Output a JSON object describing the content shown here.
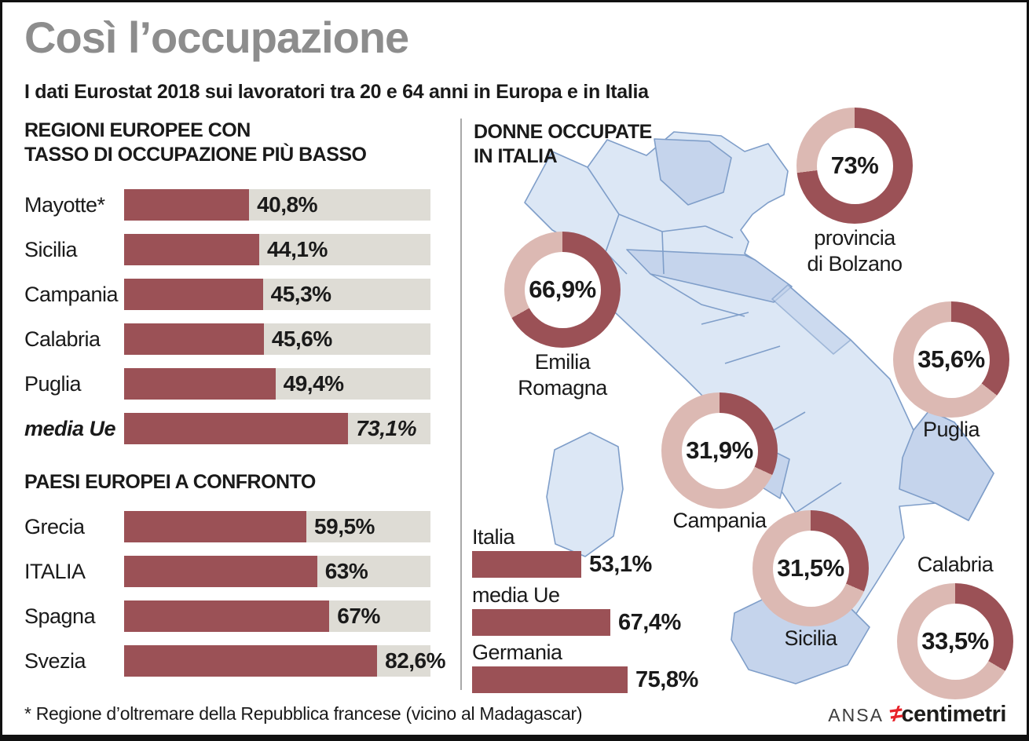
{
  "title": "Così l’occupazione",
  "subtitle": "I dati Eurostat 2018 sui lavoratori tra 20 e 64 anni in Europa e in Italia",
  "colors": {
    "bar_red": "#9b5156",
    "donut_dark": "#9b5156",
    "donut_pink": "#dcb9b3",
    "track_gray": "#dedcd5",
    "title_gray": "#8d8d8d",
    "map_fill": "#dce7f5",
    "map_dark": "#c5d4ec",
    "map_stroke": "#7f9ec9",
    "brand_red": "#e8232a"
  },
  "left": {
    "section1": {
      "title_lines": [
        "REGIONI EUROPEE CON",
        "TASSO DI OCCUPAZIONE PIÙ BASSO"
      ],
      "rows": [
        {
          "label": "Mayotte*",
          "value": 40.8,
          "value_label": "40,8%",
          "italic": false
        },
        {
          "label": "Sicilia",
          "value": 44.1,
          "value_label": "44,1%",
          "italic": false
        },
        {
          "label": "Campania",
          "value": 45.3,
          "value_label": "45,3%",
          "italic": false
        },
        {
          "label": "Calabria",
          "value": 45.6,
          "value_label": "45,6%",
          "italic": false
        },
        {
          "label": "Puglia",
          "value": 49.4,
          "value_label": "49,4%",
          "italic": false
        },
        {
          "label": "media Ue",
          "value": 73.1,
          "value_label": "73,1%",
          "italic": true
        }
      ]
    },
    "section2": {
      "title_lines": [
        "PAESI EUROPEI A CONFRONTO"
      ],
      "rows": [
        {
          "label": "Grecia",
          "value": 59.5,
          "value_label": "59,5%",
          "italic": false
        },
        {
          "label": "ITALIA",
          "value": 63,
          "value_label": "63%",
          "italic": false
        },
        {
          "label": "Spagna",
          "value": 67,
          "value_label": "67%",
          "italic": false
        },
        {
          "label": "Svezia",
          "value": 82.6,
          "value_label": "82,6%",
          "italic": false
        }
      ]
    }
  },
  "right": {
    "title_lines": [
      "DONNE OCCUPATE",
      "IN ITALIA"
    ],
    "donuts": [
      {
        "label_lines": [
          "provincia",
          "di Bolzano"
        ],
        "value": 73,
        "value_label": "73%"
      },
      {
        "label_lines": [
          "Emilia",
          "Romagna"
        ],
        "value": 66.9,
        "value_label": "66,9%"
      },
      {
        "label_lines": [
          "Puglia"
        ],
        "value": 35.6,
        "value_label": "35,6%"
      },
      {
        "label_lines": [
          "Campania"
        ],
        "value": 31.9,
        "value_label": "31,9%"
      },
      {
        "label_lines": [
          "Sicilia"
        ],
        "value": 31.5,
        "value_label": "31,5%"
      },
      {
        "label_lines": [
          "Calabria"
        ],
        "value": 33.5,
        "value_label": "33,5%"
      }
    ],
    "bars": [
      {
        "label": "Italia",
        "value": 53.1,
        "value_label": "53,1%"
      },
      {
        "label": "media Ue",
        "value": 67.4,
        "value_label": "67,4%"
      },
      {
        "label": "Germania",
        "value": 75.8,
        "value_label": "75,8%"
      }
    ]
  },
  "footer": {
    "note": "* Regione d’oltremare della Repubblica francese (vicino al Madagascar)",
    "brand": {
      "ansa": "ANSA",
      "symbol": "≠",
      "name": "centimetri"
    }
  },
  "chart_data": [
    {
      "type": "bar",
      "title": "REGIONI EUROPEE CON TASSO DI OCCUPAZIONE PIÙ BASSO",
      "categories": [
        "Mayotte*",
        "Sicilia",
        "Campania",
        "Calabria",
        "Puglia",
        "media Ue"
      ],
      "values": [
        40.8,
        44.1,
        45.3,
        45.6,
        49.4,
        73.1
      ],
      "unit": "%",
      "xlim": [
        0,
        100
      ],
      "orientation": "horizontal"
    },
    {
      "type": "bar",
      "title": "PAESI EUROPEI A CONFRONTO",
      "categories": [
        "Grecia",
        "ITALIA",
        "Spagna",
        "Svezia"
      ],
      "values": [
        59.5,
        63,
        67,
        82.6
      ],
      "unit": "%",
      "xlim": [
        0,
        100
      ],
      "orientation": "horizontal"
    },
    {
      "type": "pie",
      "subtype": "donut-multiples",
      "title": "DONNE OCCUPATE IN ITALIA",
      "categories": [
        "provincia di Bolzano",
        "Emilia Romagna",
        "Puglia",
        "Campania",
        "Sicilia",
        "Calabria"
      ],
      "values": [
        73,
        66.9,
        35.6,
        31.9,
        31.5,
        33.5
      ],
      "unit": "%"
    },
    {
      "type": "bar",
      "title": "DONNE OCCUPATE — confronto nazionale",
      "categories": [
        "Italia",
        "media Ue",
        "Germania"
      ],
      "values": [
        53.1,
        67.4,
        75.8
      ],
      "unit": "%",
      "xlim": [
        0,
        100
      ],
      "orientation": "horizontal"
    }
  ]
}
